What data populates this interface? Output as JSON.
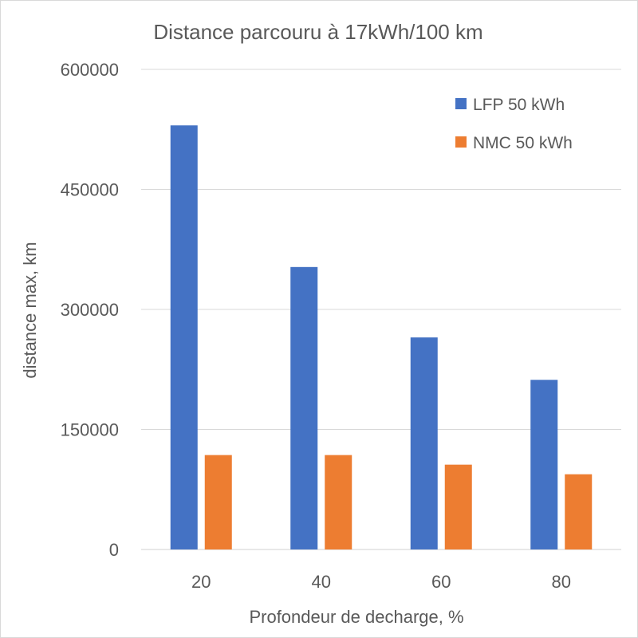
{
  "chart_data": {
    "type": "bar",
    "title": "Distance parcouru à 17kWh/100 km",
    "xlabel": "Profondeur de decharge, %",
    "ylabel": "distance max, km",
    "categories": [
      "20",
      "40",
      "60",
      "80"
    ],
    "series": [
      {
        "name": "LFP 50 kWh",
        "color": "#4472c4",
        "values": [
          530000,
          353000,
          265000,
          212000
        ]
      },
      {
        "name": "NMC 50 kWh",
        "color": "#ed7d31",
        "values": [
          118000,
          118000,
          106000,
          94000
        ]
      }
    ],
    "yticks": [
      "0",
      "150000",
      "300000",
      "450000",
      "600000"
    ],
    "ylim": [
      0,
      600000
    ],
    "grid": true,
    "legend_position": "top-right"
  }
}
